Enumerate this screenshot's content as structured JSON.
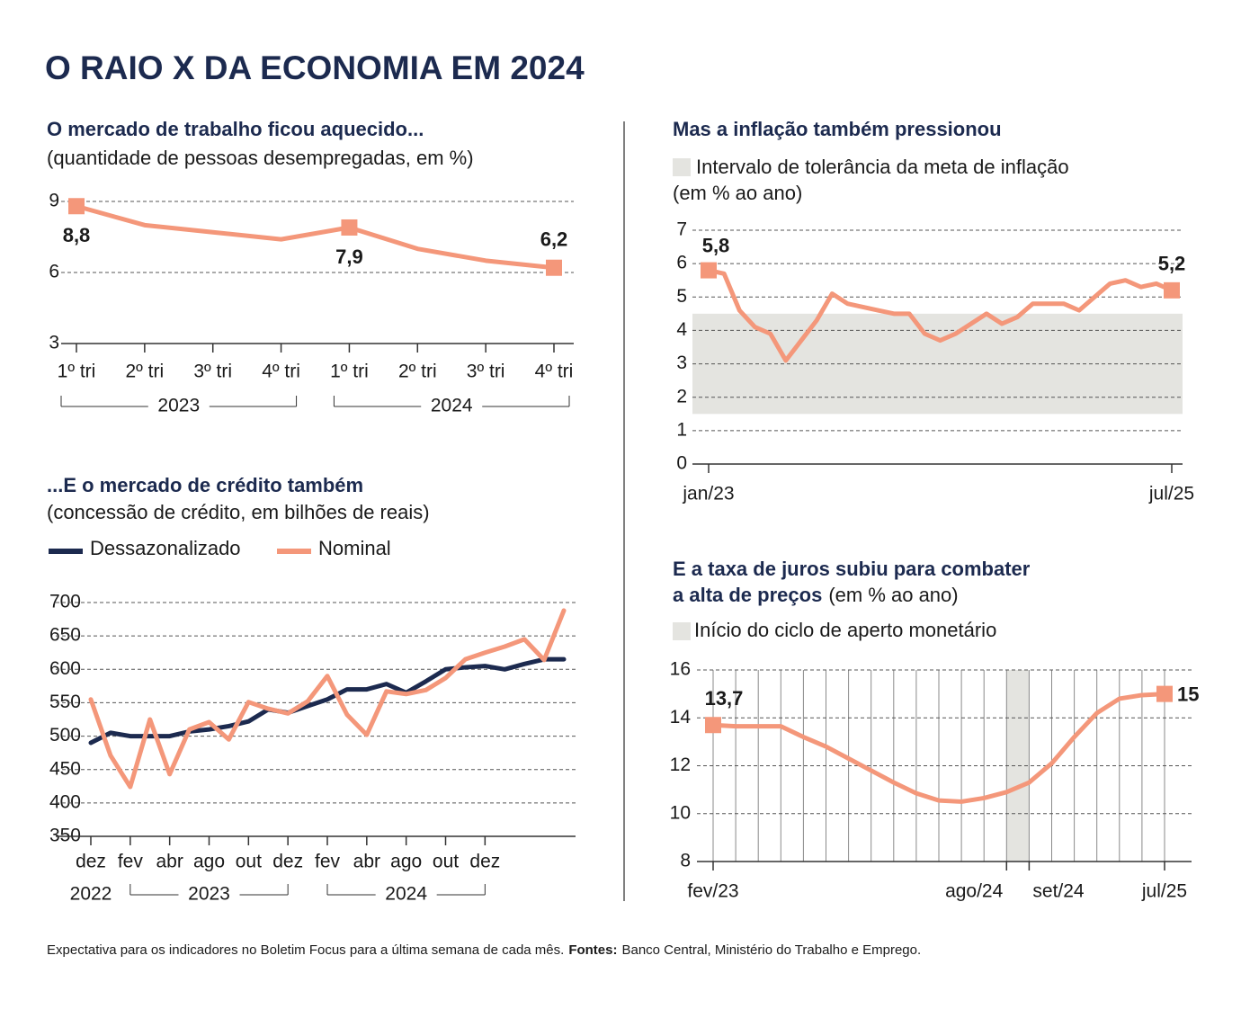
{
  "title": "O RAIO X DA ECONOMIA EM 2024",
  "footnote": {
    "text": "Expectativa para os indicadores no Boletim Focus para a última semana de cada mês.",
    "source_label": "Fontes:",
    "sources": "Banco Central, Ministério do Trabalho e Emprego."
  },
  "chart_data": [
    {
      "type": "line",
      "title": "O mercado de trabalho ficou aquecido...",
      "subtitle": "(quantidade de pessoas desempregadas, em %)",
      "categories": [
        "1º tri",
        "2º tri",
        "3º tri",
        "4º tri",
        "1º tri",
        "2º tri",
        "3º tri",
        "4º tri"
      ],
      "groups": [
        {
          "name": "2023",
          "span": [
            0,
            3
          ]
        },
        {
          "name": "2024",
          "span": [
            4,
            7
          ]
        }
      ],
      "values": [
        8.8,
        8.0,
        7.7,
        7.4,
        7.9,
        7.0,
        6.5,
        6.2
      ],
      "value_labels": [
        "8,8",
        null,
        null,
        null,
        "7,9",
        null,
        null,
        "6,2"
      ],
      "color": "#f4977a",
      "ylim": [
        3,
        9
      ],
      "yticks": [
        3,
        6,
        9
      ],
      "grid": true
    },
    {
      "type": "line",
      "title": "Mas a inflação também pressionou",
      "subtitle": "(em % ao ano)",
      "band": {
        "name": "Intervalo de tolerância da meta de inflação",
        "range": [
          1.5,
          4.5
        ],
        "color": "#e4e4e0"
      },
      "categories": [
        "jan/23",
        null,
        null,
        null,
        null,
        null,
        null,
        null,
        null,
        null,
        null,
        null,
        null,
        null,
        null,
        null,
        null,
        null,
        null,
        null,
        null,
        null,
        null,
        null,
        null,
        null,
        null,
        null,
        null,
        null,
        "jul/25"
      ],
      "values": [
        5.8,
        5.7,
        4.6,
        4.1,
        3.9,
        3.1,
        3.7,
        4.3,
        5.1,
        4.8,
        4.7,
        4.6,
        4.5,
        4.5,
        3.9,
        3.7,
        3.9,
        4.2,
        4.5,
        4.2,
        4.4,
        4.8,
        4.8,
        4.8,
        4.6,
        5.0,
        5.4,
        5.5,
        5.3,
        5.4,
        5.2
      ],
      "value_labels": [
        "5,8",
        null,
        null,
        null,
        null,
        null,
        null,
        null,
        null,
        null,
        null,
        null,
        null,
        null,
        null,
        null,
        null,
        null,
        null,
        null,
        null,
        null,
        null,
        null,
        null,
        null,
        null,
        null,
        null,
        null,
        "5,2"
      ],
      "color": "#f4977a",
      "ylim": [
        0,
        7
      ],
      "yticks": [
        0,
        1,
        2,
        3,
        4,
        5,
        6,
        7
      ],
      "grid": true
    },
    {
      "type": "line",
      "title": "...E o mercado de crédito também",
      "subtitle": "(concessão de crédito, em bilhões de reais)",
      "categories": [
        "dez",
        null,
        "fev",
        null,
        "abr",
        null,
        "ago",
        null,
        "out",
        null,
        "dez",
        null,
        "fev",
        null,
        "abr",
        null,
        "ago",
        null,
        "out",
        null,
        "dez",
        null,
        null,
        null,
        null
      ],
      "groups": [
        {
          "name": "2022",
          "span": [
            0,
            0
          ]
        },
        {
          "name": "2023",
          "span": [
            2,
            10
          ]
        },
        {
          "name": "2024",
          "span": [
            12,
            20
          ]
        }
      ],
      "series": [
        {
          "name": "Dessazonalizado",
          "color": "#1c2a4f",
          "values": [
            490,
            505,
            500,
            500,
            500,
            507,
            510,
            515,
            522,
            540,
            535,
            545,
            555,
            570,
            570,
            578,
            565,
            582,
            600,
            603,
            605,
            600,
            608,
            615,
            615
          ]
        },
        {
          "name": "Nominal",
          "color": "#f4977a",
          "values": [
            555,
            471,
            424,
            525,
            443,
            510,
            521,
            495,
            551,
            541,
            534,
            552,
            590,
            532,
            502,
            567,
            563,
            569,
            587,
            615,
            625,
            634,
            645,
            614,
            688
          ]
        }
      ],
      "ylim": [
        350,
        700
      ],
      "yticks": [
        350,
        400,
        450,
        500,
        550,
        600,
        650,
        700
      ],
      "grid": true
    },
    {
      "type": "line",
      "title": [
        "E a taxa de juros subiu para combater",
        "a alta de preços"
      ],
      "subtitle": "(em % ao ano)",
      "band": {
        "name": "Início do ciclo de aperto monetário",
        "x_span": [
          13,
          14
        ],
        "color": "#e4e4e0"
      },
      "categories": [
        "fev/23",
        null,
        null,
        null,
        null,
        null,
        null,
        null,
        null,
        null,
        null,
        null,
        null,
        "ago/24",
        "set/24",
        null,
        null,
        null,
        null,
        null,
        "jul/25"
      ],
      "values": [
        13.7,
        13.65,
        13.65,
        13.65,
        13.2,
        12.8,
        12.3,
        11.8,
        11.3,
        10.85,
        10.55,
        10.5,
        10.65,
        10.9,
        11.3,
        12.1,
        13.2,
        14.2,
        14.8,
        14.95,
        15
      ],
      "value_labels": [
        "13,7",
        null,
        null,
        null,
        null,
        null,
        null,
        null,
        null,
        null,
        null,
        null,
        null,
        null,
        null,
        null,
        null,
        null,
        null,
        null,
        "15"
      ],
      "color": "#f4977a",
      "ylim": [
        8,
        16
      ],
      "yticks": [
        8,
        10,
        12,
        14,
        16
      ],
      "grid": true,
      "grid_x": true
    }
  ]
}
